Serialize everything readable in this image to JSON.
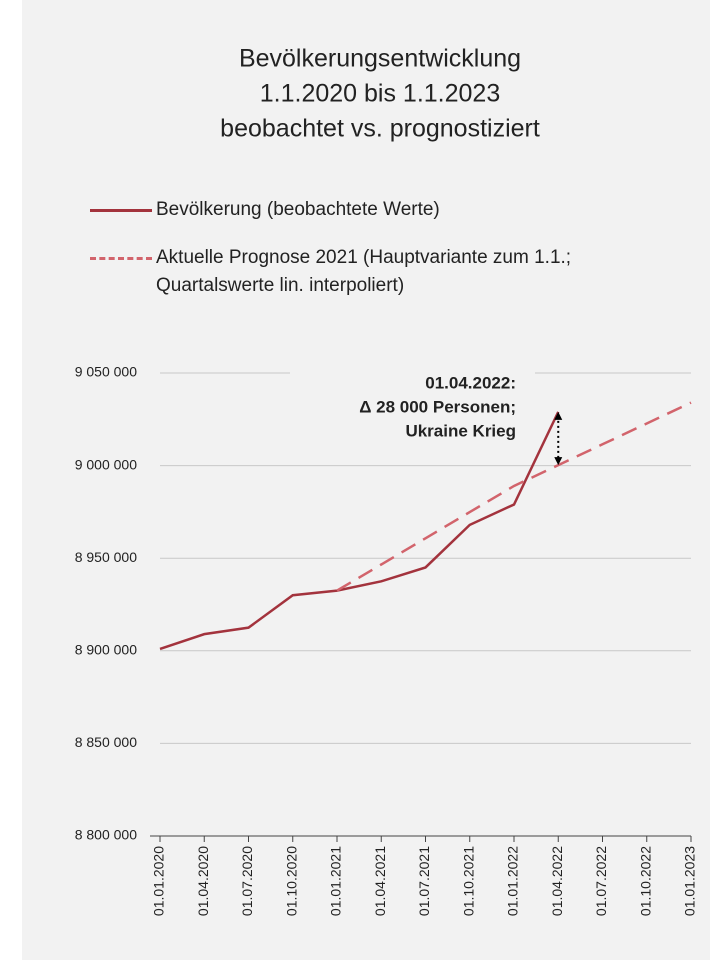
{
  "chart_data": {
    "type": "line",
    "title": [
      "Bevölkerungsentwicklung",
      "1.1.2020 bis 1.1.2023",
      "beobachtet vs. prognostiziert"
    ],
    "categories": [
      "01.01.2020",
      "01.04.2020",
      "01.07.2020",
      "01.10.2020",
      "01.01.2021",
      "01.04.2021",
      "01.07.2021",
      "01.10.2021",
      "01.01.2022",
      "01.04.2022",
      "01.07.2022",
      "01.10.2022",
      "01.01.2023"
    ],
    "series": [
      {
        "name": "Bevölkerung (beobachtete Werte)",
        "color": "#a3333d",
        "dashed": false,
        "values": [
          8901000,
          8909000,
          8912500,
          8930000,
          8932500,
          8937500,
          8945000,
          8968000,
          8979000,
          9029000,
          null,
          null,
          null
        ]
      },
      {
        "name": "Aktuelle Prognose 2021 (Hauptvariante zum 1.1.; Quartalswerte lin. interpoliert)",
        "color": "#d2646c",
        "dashed": true,
        "values": [
          null,
          null,
          null,
          null,
          8932500,
          8946600,
          8960750,
          8974900,
          8989000,
          9000250,
          9011500,
          9022750,
          9034000
        ]
      }
    ],
    "ylim": [
      8800000,
      9050000
    ],
    "yticks": [
      {
        "value": 8800000,
        "label": "8 800 000"
      },
      {
        "value": 8850000,
        "label": "8 850 000"
      },
      {
        "value": 8900000,
        "label": "8 900 000"
      },
      {
        "value": 8950000,
        "label": "8 950 000"
      },
      {
        "value": 9000000,
        "label": "9 000 000"
      },
      {
        "value": 9050000,
        "label": "9 050 000"
      }
    ],
    "grid": true,
    "annotation": [
      "01.04.2022:",
      "Δ 28 000 Personen;",
      "Ukraine Krieg"
    ]
  }
}
